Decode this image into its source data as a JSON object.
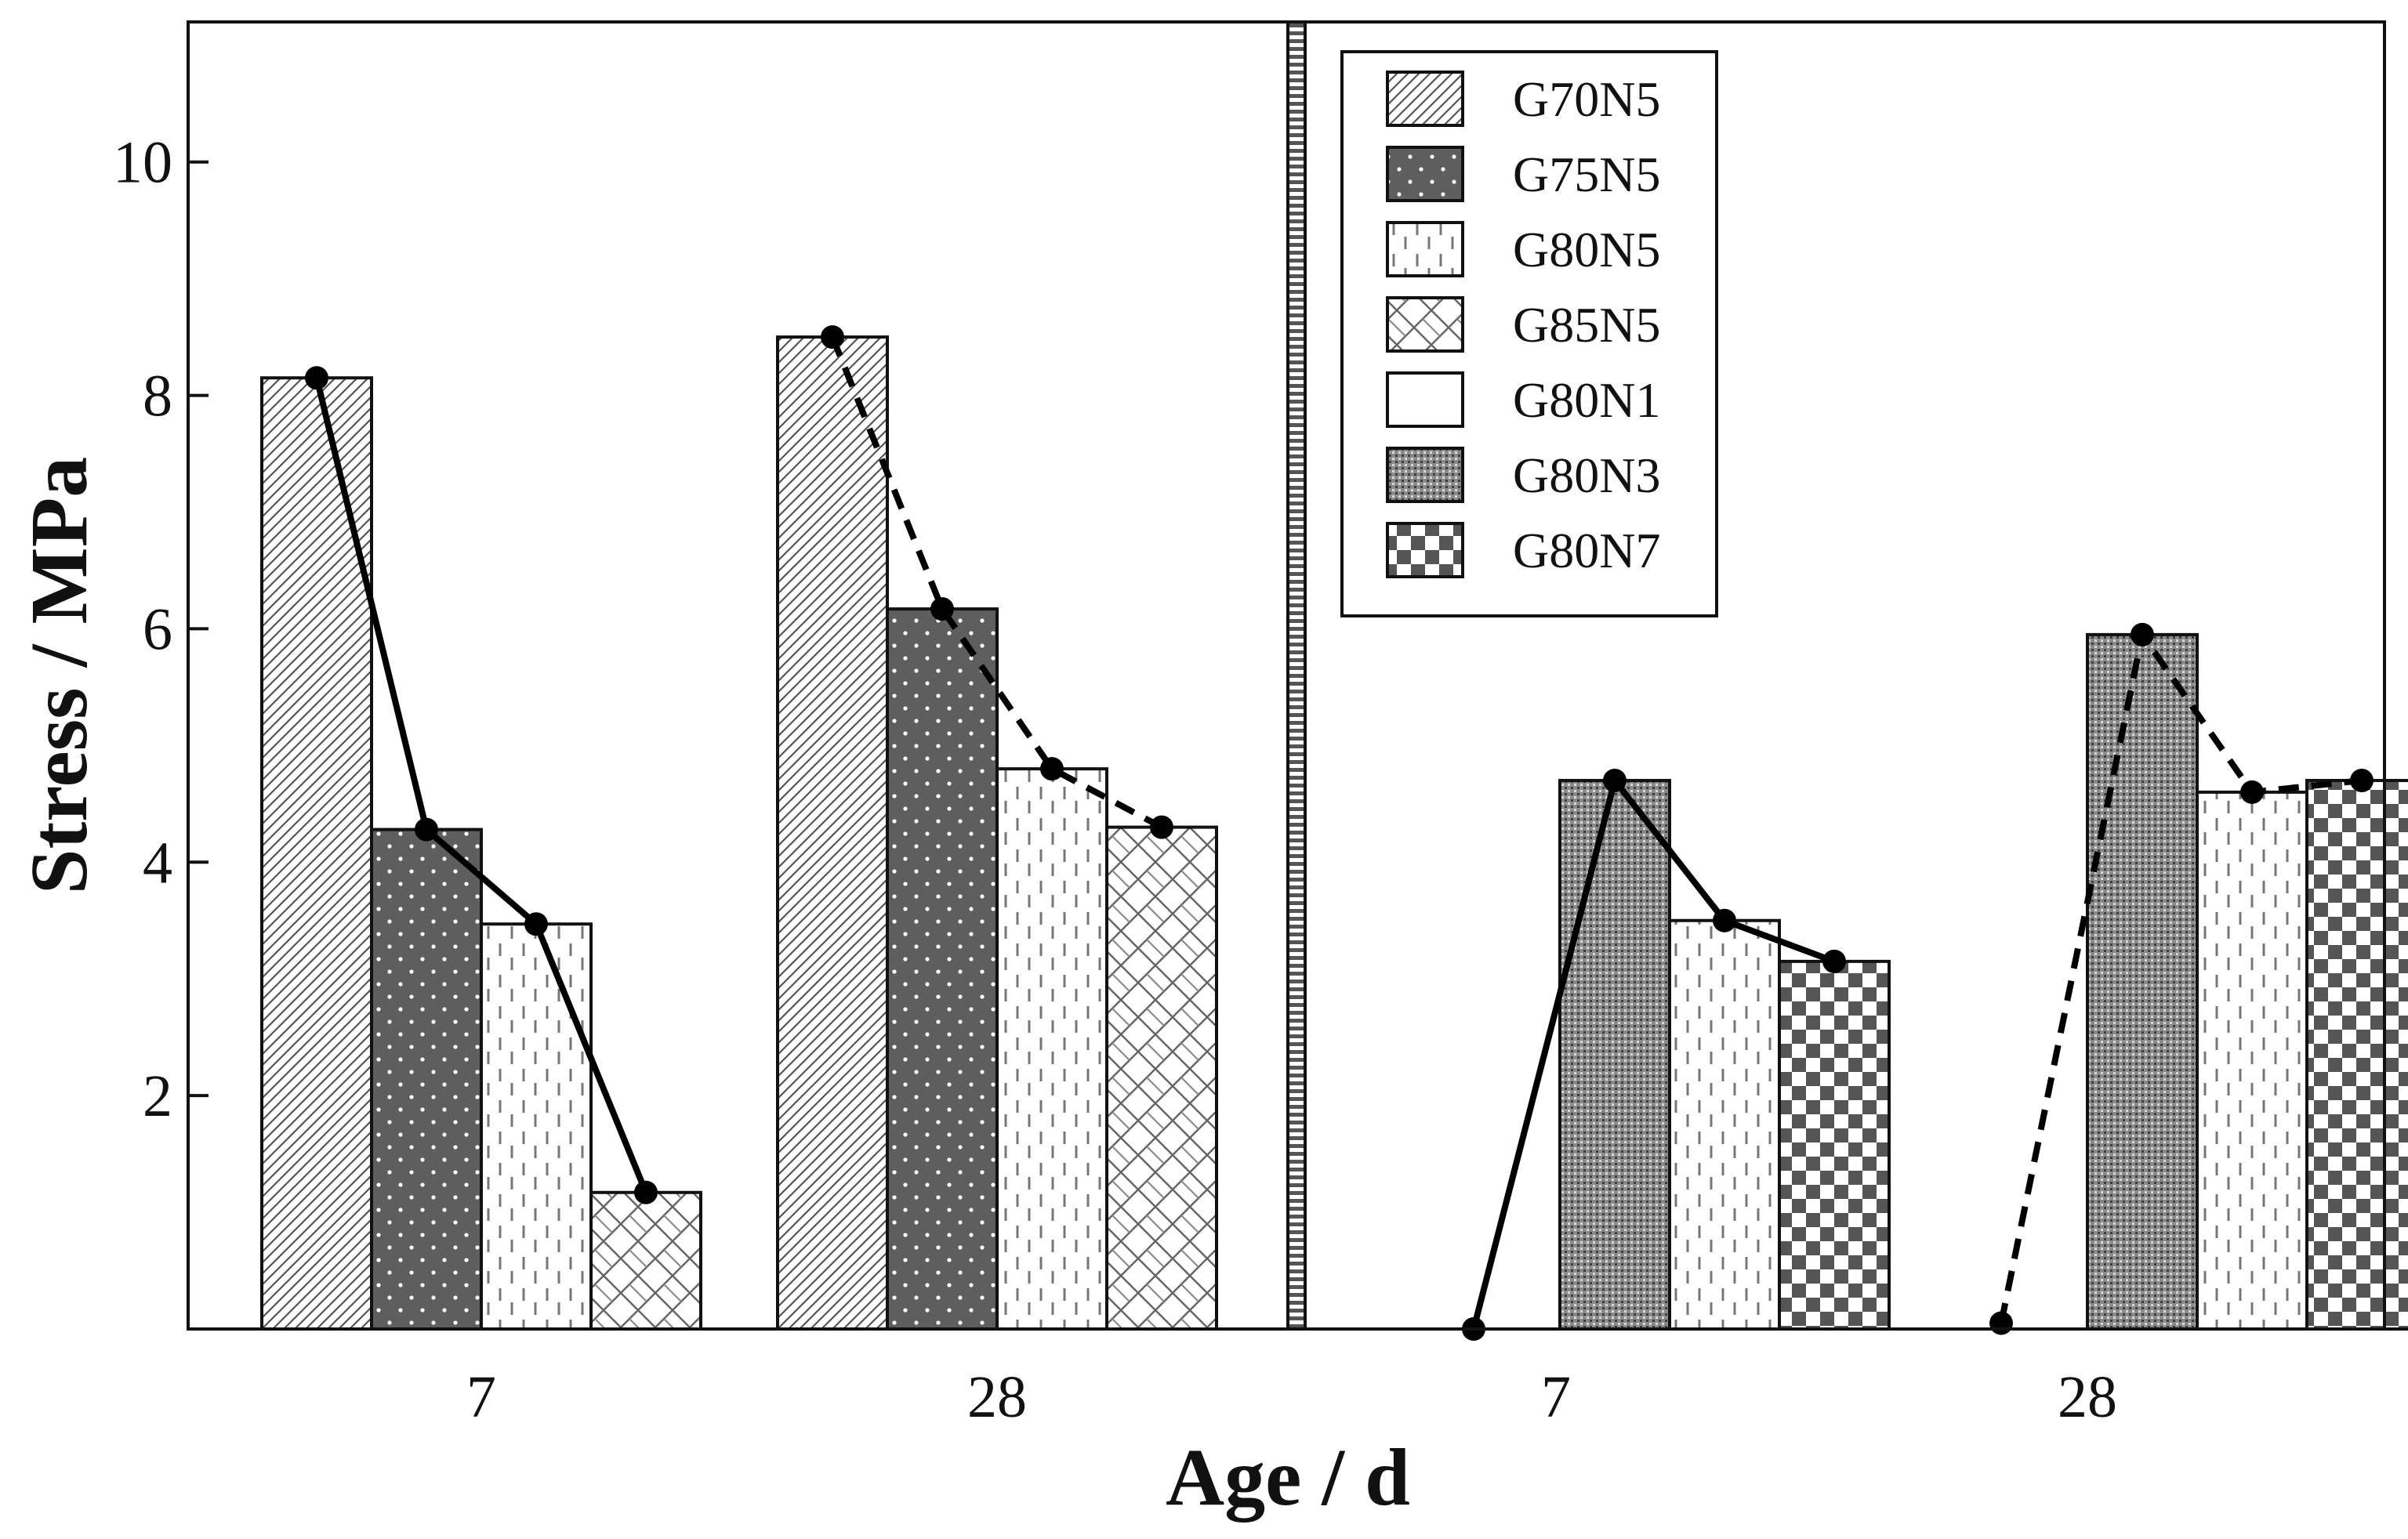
{
  "chart_data": {
    "type": "bar",
    "xlabel": "Age / d",
    "ylabel": "Stress  / MPa",
    "ylim": [
      0,
      11.2
    ],
    "yticks": [
      2,
      4,
      6,
      8,
      10
    ],
    "legend": {
      "placement": "top-right",
      "entries": [
        {
          "name": "G70N5",
          "pattern": "diag"
        },
        {
          "name": "G75N5",
          "pattern": "dots"
        },
        {
          "name": "G80N5",
          "pattern": "dash"
        },
        {
          "name": "G85N5",
          "pattern": "cross"
        },
        {
          "name": "G80N1",
          "pattern": "none"
        },
        {
          "name": "G80N3",
          "pattern": "fine"
        },
        {
          "name": "G80N7",
          "pattern": "check"
        }
      ]
    },
    "panels": [
      {
        "groups": [
          {
            "label": "7",
            "bars": [
              {
                "series": "G70N5",
                "value": 8.15
              },
              {
                "series": "G75N5",
                "value": 4.28
              },
              {
                "series": "G80N5",
                "value": 3.47
              },
              {
                "series": "G85N5",
                "value": 1.17
              }
            ],
            "line_style": "solid"
          },
          {
            "label": "28",
            "bars": [
              {
                "series": "G70N5",
                "value": 8.5
              },
              {
                "series": "G75N5",
                "value": 6.17
              },
              {
                "series": "G80N5",
                "value": 4.8
              },
              {
                "series": "G85N5",
                "value": 4.3
              }
            ],
            "line_style": "dashed"
          }
        ]
      },
      {
        "groups": [
          {
            "label": "7",
            "bars": [
              {
                "series": "G80N1",
                "value": 0
              },
              {
                "series": "G80N3",
                "value": 4.7
              },
              {
                "series": "G80N5",
                "value": 3.5
              },
              {
                "series": "G80N7",
                "value": 3.15
              }
            ],
            "line_style": "solid"
          },
          {
            "label": "28",
            "bars": [
              {
                "series": "G80N1",
                "value": 0.05
              },
              {
                "series": "G80N3",
                "value": 5.95
              },
              {
                "series": "G80N5",
                "value": 4.6
              },
              {
                "series": "G80N7",
                "value": 4.7
              }
            ],
            "line_style": "dashed"
          }
        ]
      }
    ]
  }
}
